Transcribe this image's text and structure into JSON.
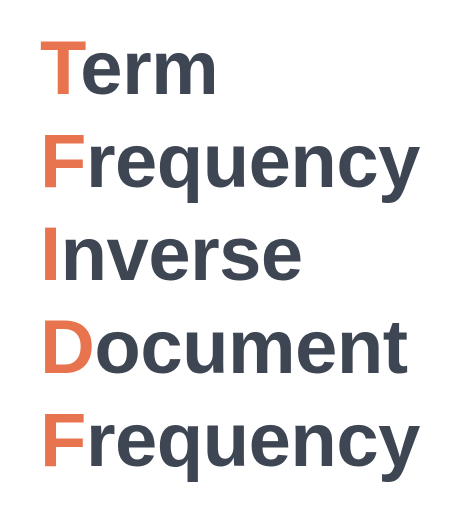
{
  "lines": [
    {
      "initial": "T",
      "rest": "erm"
    },
    {
      "initial": "F",
      "rest": "requency"
    },
    {
      "initial": "I",
      "rest": "nverse"
    },
    {
      "initial": "D",
      "rest": "ocument"
    },
    {
      "initial": "F",
      "rest": "requency"
    }
  ],
  "colors": {
    "initial": "#e8734f",
    "text": "#3d4652",
    "background": "#ffffff"
  }
}
